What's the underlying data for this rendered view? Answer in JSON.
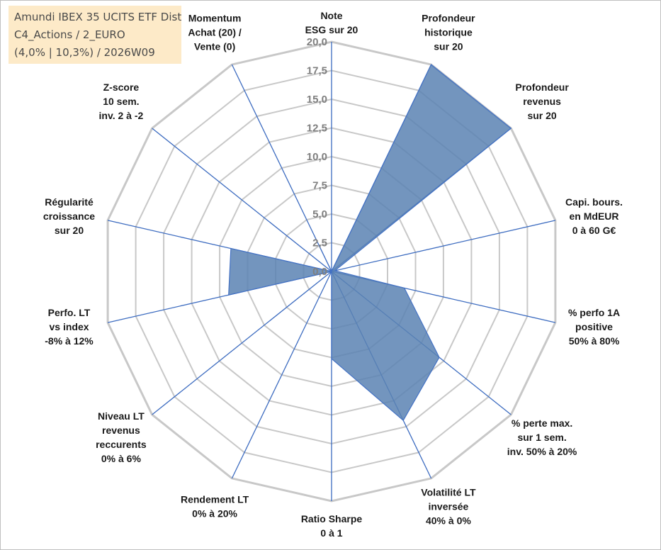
{
  "info_box": {
    "line1": "Amundi IBEX 35 UCITS ETF Dist",
    "line2": "C4_Actions / 2_EURO",
    "line3": "(4,0% | 10,3%) / 2026W09"
  },
  "colors": {
    "grid": "#c8c8c8",
    "spoke": "#3d6cc0",
    "fill": "#5b82b3",
    "stroke": "#4472c4",
    "tick": "#7f7f7f",
    "label": "#1a1a1a",
    "info_bg": "#fde9c4"
  },
  "chart_data": {
    "type": "radar",
    "title": "",
    "rlim": [
      0,
      20
    ],
    "grid": true,
    "ticks": [
      "0,0",
      "2,5",
      "5,0",
      "7,5",
      "10,0",
      "12,5",
      "15,0",
      "17,5",
      "20,0"
    ],
    "tick_values": [
      0,
      2.5,
      5,
      7.5,
      10,
      12.5,
      15,
      17.5,
      20
    ],
    "axes": [
      {
        "label": [
          "Note",
          "ESG sur 20"
        ]
      },
      {
        "label": [
          "Profondeur",
          "historique",
          "sur 20"
        ]
      },
      {
        "label": [
          "Profondeur",
          "revenus",
          "sur 20"
        ]
      },
      {
        "label": [
          "Capi. bours.",
          "en MdEUR",
          "0 à 60 G€"
        ]
      },
      {
        "label": [
          "% perfo 1A",
          "positive",
          "50% à 80%"
        ]
      },
      {
        "label": [
          "% perte max.",
          "sur 1 sem.",
          "inv. 50% à 20%"
        ]
      },
      {
        "label": [
          "Volatilité LT",
          "inversée",
          "40% à 0%"
        ]
      },
      {
        "label": [
          "Ratio Sharpe",
          "0 à 1"
        ]
      },
      {
        "label": [
          "Rendement LT",
          "0% à 20%"
        ]
      },
      {
        "label": [
          "Niveau LT",
          "revenus",
          "reccurents",
          "0% à 6%"
        ]
      },
      {
        "label": [
          "Perfo. LT",
          "vs index",
          "-8% à 12%"
        ]
      },
      {
        "label": [
          "Régularité",
          "croissance",
          "sur 20"
        ]
      },
      {
        "label": [
          "Z-score",
          "10 sem.",
          "inv. 2 à -2"
        ]
      },
      {
        "label": [
          "Momentum",
          "Achat (20) /",
          "Vente (0)"
        ]
      }
    ],
    "series": [
      {
        "values": [
          0,
          20,
          20,
          0.3,
          6.5,
          12,
          14.4,
          7.6,
          0,
          0,
          9.2,
          9,
          0,
          2.5
        ]
      }
    ]
  }
}
